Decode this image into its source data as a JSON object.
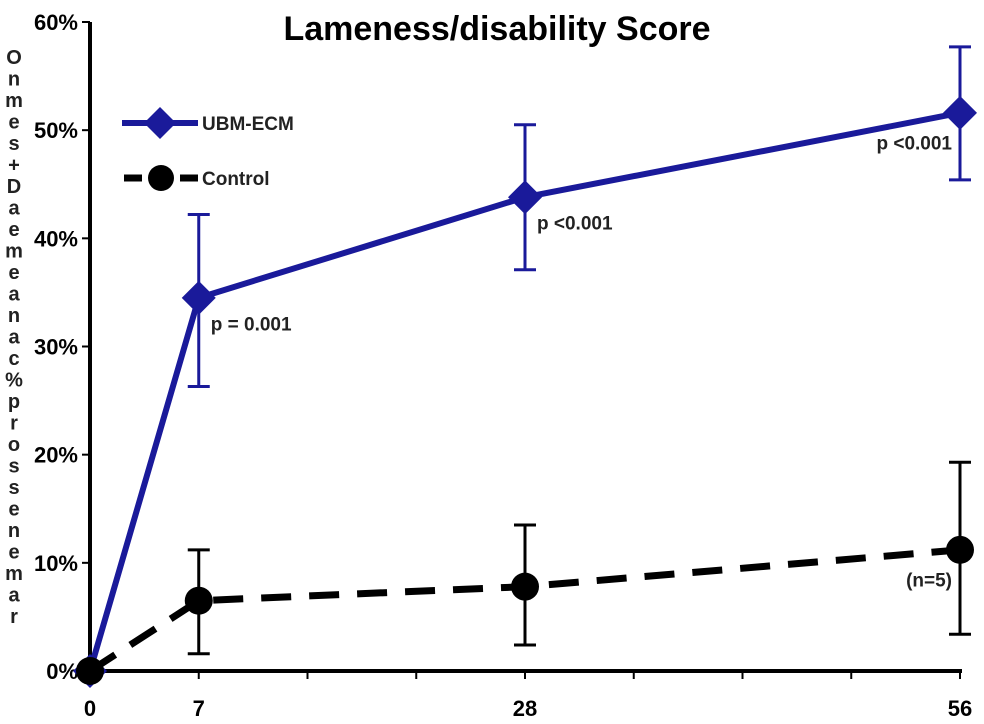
{
  "chart_data": {
    "type": "line",
    "title": "Lameness/disability Score",
    "ylabel": "O n m e s + D a e m e a n a c %  p r o s s e n e m a r",
    "xlabel": "",
    "x": [
      0,
      7,
      28,
      56
    ],
    "x_tick_labels": [
      "0",
      "7",
      "28",
      "56"
    ],
    "y_tick_labels": [
      "0%",
      "10%",
      "20%",
      "30%",
      "40%",
      "50%",
      "60%"
    ],
    "ylim": [
      0,
      60
    ],
    "y_unit": "%",
    "grid": false,
    "legend_position": "top-left",
    "series": [
      {
        "name": "UBM-ECM",
        "values": [
          0,
          34.5,
          43.8,
          51.6
        ],
        "err_upper": [
          0,
          42.2,
          50.5,
          57.7
        ],
        "err_lower": [
          0,
          26.3,
          37.1,
          45.4
        ],
        "color": "#1a1a9a",
        "line_style": "solid",
        "marker": "diamond"
      },
      {
        "name": "Control",
        "values": [
          0,
          6.5,
          7.8,
          11.2
        ],
        "err_upper": [
          0,
          11.2,
          13.5,
          19.3
        ],
        "err_lower": [
          0,
          1.6,
          2.4,
          3.4
        ],
        "color": "#000000",
        "line_style": "dashed",
        "marker": "circle"
      }
    ],
    "annotations": [
      {
        "text": "p = 0.001",
        "x": 7,
        "y": 31.5
      },
      {
        "text": "p <0.001",
        "x": 28,
        "y": 40.8
      },
      {
        "text": "p <0.001",
        "x": 56,
        "y": 48.2
      },
      {
        "text": "(n=5)",
        "x": 56,
        "y": 7.8
      }
    ]
  }
}
